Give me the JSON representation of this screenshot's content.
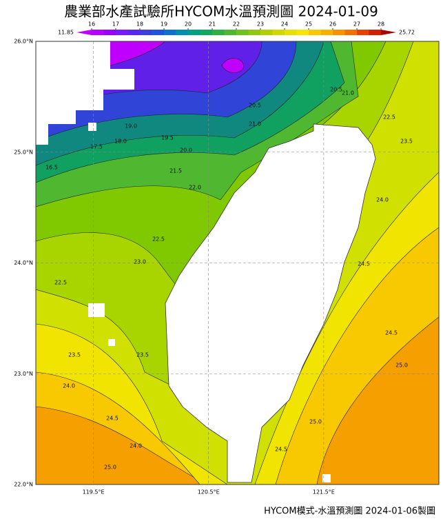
{
  "title": "農業部水產試驗所HYCOM水溫預測圖 2024-01-09",
  "colorbar": {
    "min": 11.85,
    "max": 25.72,
    "range": [
      16,
      28
    ],
    "ticks": [
      16,
      17,
      18,
      19,
      20,
      21,
      22,
      23,
      24,
      25,
      26,
      27,
      28
    ],
    "colors": [
      "#b400ff",
      "#9600ff",
      "#7818ff",
      "#5828f0",
      "#3a3ee0",
      "#2054e0",
      "#1070d0",
      "#0090b0",
      "#00a080",
      "#10a860",
      "#30b040",
      "#50b830",
      "#70c020",
      "#90c810",
      "#b0d000",
      "#d0d800",
      "#e8e000",
      "#f8e400",
      "#f8c800",
      "#f8b000",
      "#f89000",
      "#f07000",
      "#e84000",
      "#d02000"
    ],
    "low_color": "#c000ff",
    "high_color": "#a80000"
  },
  "map": {
    "lat_range": [
      22,
      26
    ],
    "lon_range": [
      119,
      122.5
    ],
    "lat_ticks": [
      {
        "value": 26,
        "label": "26.0°N"
      },
      {
        "value": 25,
        "label": "25.0°N"
      },
      {
        "value": 24,
        "label": "24.0°N"
      },
      {
        "value": 23,
        "label": "23.0°N"
      },
      {
        "value": 22,
        "label": "22.0°N"
      }
    ],
    "lon_ticks": [
      {
        "value": 119.5,
        "label": "119.5°E"
      },
      {
        "value": 120.5,
        "label": "120.5°E"
      },
      {
        "value": 121.5,
        "label": "121.5°E"
      }
    ],
    "contour_labels": [
      "16.5",
      "17.5",
      "18.0",
      "19.0",
      "19.5",
      "20.0",
      "20.5",
      "21.0",
      "21.5",
      "22.0",
      "22.5",
      "23.0",
      "22.5",
      "23.5",
      "23.5",
      "24.0",
      "24.5",
      "24.0",
      "25.0",
      "24.5",
      "25.0",
      "24.5",
      "24.5",
      "25.0",
      "24.0",
      "23.5",
      "22.5",
      "21.0",
      "20.5"
    ]
  },
  "footer": "HYCOM模式-水溫預測圖 2024-01-06製圖"
}
